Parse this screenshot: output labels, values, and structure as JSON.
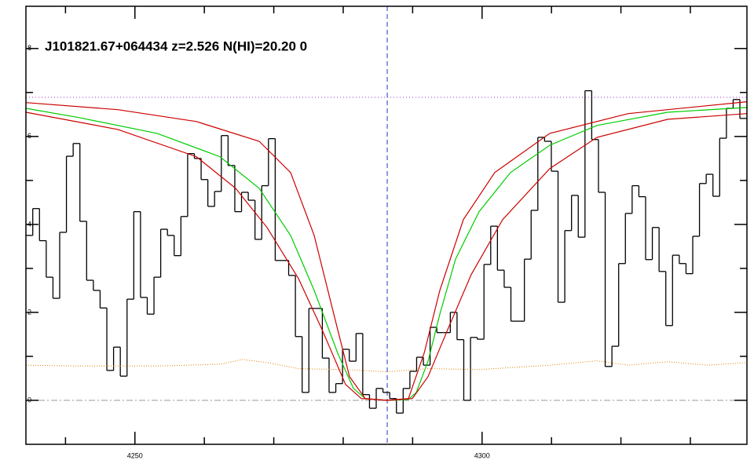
{
  "chart_data": {
    "type": "line",
    "title": "J101821.67+064434 z=2.526 N(HI)=20.20 0",
    "xlim": [
      4234.3,
      4338.15
    ],
    "ylim": [
      -1,
      8.96
    ],
    "xticks": [
      4250,
      4300
    ],
    "xticks_minor": [
      4240,
      4260,
      4270,
      4280,
      4290,
      4310,
      4320,
      4330
    ],
    "yticks": [
      0,
      2,
      4,
      6,
      8
    ],
    "yticks_minor": [
      1,
      3,
      5,
      7
    ],
    "line_center": 4286.34,
    "continuum_level": 6.89,
    "zero_level": 0,
    "series": [
      {
        "style": "step",
        "color": "#000000",
        "x": [
          4234.8,
          4235.77,
          4236.74,
          4237.71,
          4238.68,
          4239.65,
          4240.62,
          4241.59,
          4242.56,
          4243.53,
          4244.5,
          4245.47,
          4246.44,
          4247.41,
          4248.38,
          4249.35,
          4250.32,
          4251.29,
          4252.26,
          4253.23,
          4254.2,
          4255.17,
          4256.14,
          4257.11,
          4258.08,
          4259.05,
          4260.02,
          4260.99,
          4261.96,
          4262.93,
          4263.9,
          4264.87,
          4265.84,
          4266.81,
          4267.78,
          4268.75,
          4269.72,
          4270.69,
          4271.66,
          4272.63,
          4273.6,
          4274.57,
          4275.54,
          4276.51,
          4277.48,
          4278.45,
          4279.42,
          4280.39,
          4281.36,
          4282.33,
          4283.3,
          4284.27,
          4285.24,
          4286.21,
          4287.18,
          4288.15,
          4289.12,
          4290.09,
          4291.06,
          4292.03,
          4293.0,
          4293.97,
          4294.94,
          4295.91,
          4296.88,
          4297.85,
          4298.82,
          4299.79,
          4300.76,
          4301.73,
          4302.7,
          4303.67,
          4304.64,
          4305.61,
          4306.58,
          4307.55,
          4308.52,
          4309.49,
          4310.46,
          4311.43,
          4312.4,
          4313.37,
          4314.34,
          4315.31,
          4316.28,
          4317.25,
          4318.22,
          4319.19,
          4320.16,
          4321.13,
          4322.1,
          4323.07,
          4324.04,
          4325.01,
          4325.98,
          4326.95,
          4327.92,
          4328.89,
          4329.86,
          4330.83,
          4331.8,
          4332.77,
          4333.74,
          4334.71,
          4335.68,
          4336.65,
          4337.62
        ],
        "values": [
          3.75,
          4.36,
          3.63,
          2.8,
          2.32,
          3.82,
          5.55,
          5.84,
          4.07,
          2.73,
          2.5,
          2.1,
          0.68,
          1.21,
          0.55,
          2.3,
          4.29,
          2.34,
          1.96,
          2.8,
          3.89,
          3.75,
          3.29,
          4.18,
          5.61,
          5.5,
          5.02,
          4.41,
          4.75,
          6.02,
          5.34,
          4.29,
          4.73,
          4.55,
          3.66,
          4.88,
          5.95,
          3.18,
          3.18,
          2.84,
          1.45,
          0.18,
          2.09,
          2.09,
          0.96,
          0.18,
          0.38,
          1.16,
          0.89,
          1.52,
          0.13,
          -0.18,
          0.27,
          0.18,
          0.04,
          -0.29,
          0.27,
          0.66,
          0.98,
          0.8,
          1.66,
          1.54,
          1.54,
          2.0,
          1.38,
          0,
          1.43,
          1.39,
          3.09,
          3.96,
          2.96,
          2.57,
          1.8,
          1.8,
          3.21,
          4.32,
          5.98,
          5.89,
          5.21,
          2.23,
          3.86,
          4.66,
          3.71,
          7.04,
          5.93,
          4.73,
          0.77,
          1.23,
          3.11,
          4.25,
          4.88,
          4.63,
          3.2,
          3.93,
          2.93,
          1.7,
          3.3,
          3.11,
          2.88,
          3.73,
          4.93,
          5.14,
          4.64,
          5.96,
          6.64,
          6.84,
          6.41
        ]
      },
      {
        "style": "smooth",
        "color": "#00cc00",
        "x": [
          4234.3,
          4241.88,
          4253.19,
          4262.24,
          4267.9,
          4272.42,
          4275.82,
          4279.21,
          4281.47,
          4283.17,
          4286.34,
          4289.39,
          4290.52,
          4292.22,
          4293.92,
          4296.18,
          4299.57,
          4304.1,
          4309.75,
          4316.54,
          4326.72,
          4338.15
        ],
        "values": [
          6.64,
          6.43,
          6.07,
          5.54,
          4.82,
          3.75,
          2.5,
          1.07,
          0.27,
          0.04,
          0,
          0.02,
          0.18,
          0.89,
          1.96,
          3.21,
          4.29,
          5.18,
          5.8,
          6.25,
          6.55,
          6.66
        ]
      },
      {
        "style": "smooth",
        "color": "#cc0000",
        "x": [
          4234.3,
          4247.54,
          4258.85,
          4264.5,
          4269.03,
          4273.55,
          4276.95,
          4280.34,
          4282.6,
          4286.34,
          4289.96,
          4292.22,
          4295.05,
          4298.44,
          4302.97,
          4309.75,
          4316.54,
          4326.72,
          4338.15
        ],
        "values": [
          6.55,
          6.16,
          5.54,
          4.82,
          3.93,
          2.77,
          1.61,
          0.36,
          0.04,
          0,
          0.04,
          0.54,
          1.61,
          2.86,
          4.11,
          5.27,
          5.98,
          6.39,
          6.52
        ]
      },
      {
        "style": "smooth",
        "color": "#cc0000",
        "x": [
          4234.3,
          4247.54,
          4258.85,
          4267.9,
          4272.42,
          4275.82,
          4278.64,
          4280.91,
          4283.17,
          4286.34,
          4289.39,
          4291.66,
          4293.92,
          4297.31,
          4301.83,
          4309.75,
          4321.07,
          4338.15
        ],
        "values": [
          6.77,
          6.61,
          6.34,
          5.89,
          5.18,
          3.75,
          1.96,
          0.54,
          0.04,
          0,
          0.04,
          1.07,
          2.5,
          4.11,
          5.18,
          6.07,
          6.52,
          6.79
        ]
      },
      {
        "style": "dotted",
        "color": "#e08000",
        "x": [
          4234.3,
          4241.88,
          4253.19,
          4262.24,
          4265.5,
          4269.03,
          4273.55,
          4280.34,
          4286.34,
          4292.22,
          4299.57,
          4309.75,
          4316.54,
          4321.07,
          4326.72,
          4332.4,
          4338.15
        ],
        "values": [
          0.8,
          0.78,
          0.78,
          0.82,
          0.93,
          0.86,
          0.72,
          0.7,
          0.65,
          0.72,
          0.7,
          0.8,
          0.9,
          0.8,
          0.88,
          0.8,
          0.86
        ]
      }
    ]
  }
}
